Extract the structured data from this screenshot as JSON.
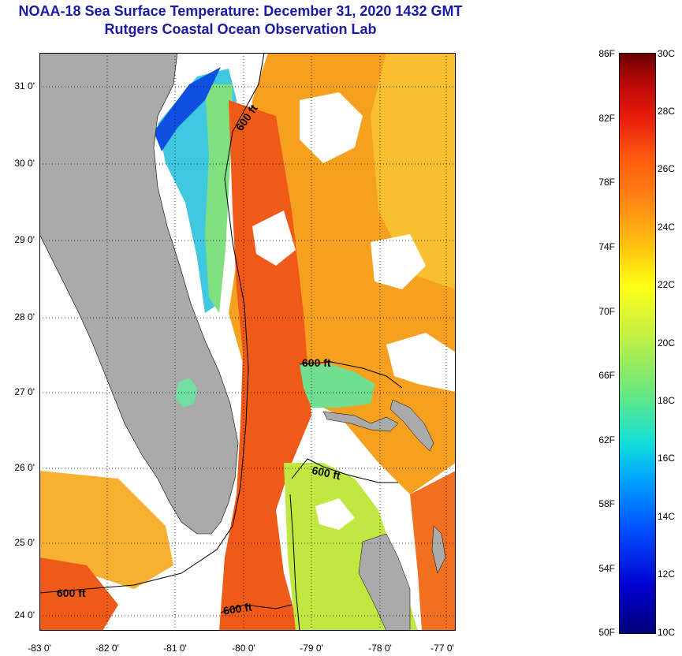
{
  "title": {
    "line1": "NOAA-18 Sea Surface Temperature:  December 31, 2020 1432 GMT",
    "line2": "Rutgers Coastal Ocean Observation Lab"
  },
  "axes": {
    "lat_labels": [
      "31 0'",
      "30 0'",
      "29 0'",
      "28 0'",
      "27 0'",
      "26 0'",
      "25 0'",
      "24 0'"
    ],
    "lon_labels": [
      "-83 0'",
      "-82 0'",
      "-81 0'",
      "-80 0'",
      "-79 0'",
      "-78 0'",
      "-77 0'"
    ]
  },
  "contour": {
    "label": "600 ft",
    "count": 5
  },
  "colorbar": {
    "fahrenheit": [
      "86F",
      "82F",
      "78F",
      "74F",
      "70F",
      "66F",
      "62F",
      "58F",
      "54F",
      "50F"
    ],
    "celsius": [
      "30C",
      "28C",
      "26C",
      "24C",
      "22C",
      "20C",
      "18C",
      "16C",
      "14C",
      "12C",
      "10C"
    ]
  },
  "colors": {
    "title": "#1a1aa6",
    "land": "#aaaaaa",
    "cloud": "#ffffff",
    "gulf_stream": "#f05a18",
    "shelf_cool": "#40c8e0"
  }
}
